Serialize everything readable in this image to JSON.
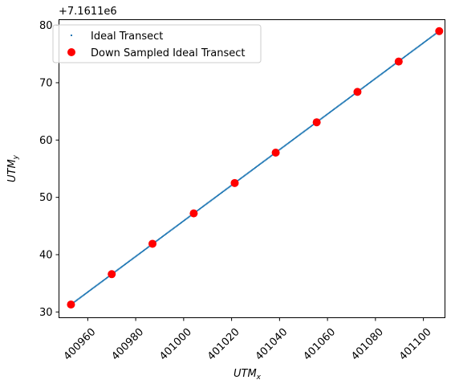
{
  "chart_data": {
    "type": "scatter",
    "xlabel_base": "UTM",
    "xlabel_sub": "x",
    "ylabel_base": "UTM",
    "ylabel_sub": "y",
    "y_offset_label": "+7.1611e6",
    "xlim": [
      400948,
      401109
    ],
    "ylim": [
      29.0,
      81.0
    ],
    "x_ticks": [
      400960,
      400980,
      401000,
      401020,
      401040,
      401060,
      401080,
      401100
    ],
    "y_ticks": [
      30,
      40,
      50,
      60,
      70,
      80
    ],
    "x_tick_labels": [
      "400960",
      "400980",
      "401000",
      "401020",
      "401040",
      "401060",
      "401080",
      "401100"
    ],
    "y_tick_labels": [
      "30",
      "40",
      "50",
      "60",
      "70",
      "80"
    ],
    "grid": false,
    "legend_position": "top-left",
    "series": [
      {
        "name": "Ideal Transect",
        "style": "small-dots",
        "color": "#1f77b4",
        "line_start": [
          400953.0,
          31.3
        ],
        "line_end": [
          401106.6,
          79.0
        ]
      },
      {
        "name": "Down Sampled Ideal Transect",
        "style": "markers",
        "color": "#ff0000",
        "x": [
          400953.0,
          400970.0,
          400987.0,
          401004.2,
          401021.3,
          401038.4,
          401055.5,
          401072.5,
          401089.7,
          401106.6
        ],
        "y": [
          31.3,
          36.6,
          41.9,
          47.2,
          52.5,
          57.8,
          63.1,
          68.4,
          73.7,
          79.0
        ]
      }
    ]
  }
}
